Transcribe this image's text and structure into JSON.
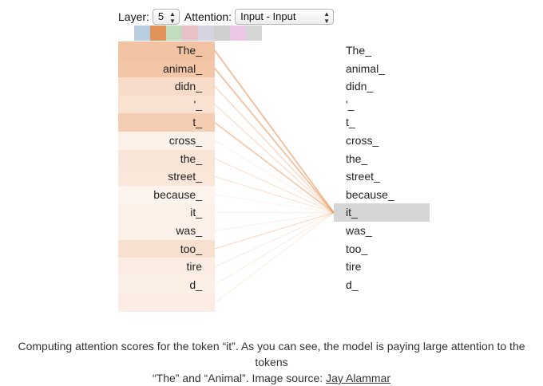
{
  "controls": {
    "layer_label": "Layer:",
    "layer_value": "5",
    "attention_label": "Attention:",
    "attention_value": "Input - Input"
  },
  "head_colors": [
    "#b9cde0",
    "#e0945a",
    "#c3dcc0",
    "#e8c1c6",
    "#d6d3e2",
    "#cfcfcf",
    "#ecc7e3",
    "#d5d5d5"
  ],
  "selected_head": 1,
  "tokens": [
    "The_",
    "animal_",
    "didn_",
    "'_",
    "t_",
    "cross_",
    "the_",
    "street_",
    "because_",
    "it_",
    "was_",
    "too_",
    "tire",
    "d_",
    ""
  ],
  "attention_weights": [
    0.55,
    0.52,
    0.3,
    0.24,
    0.45,
    0.08,
    0.2,
    0.18,
    0.05,
    0.08,
    0.08,
    0.25,
    0.12,
    0.1,
    0.12
  ],
  "selected_token_index": 9,
  "accent_color": "#e8945a",
  "caption": {
    "line1": "Computing attention scores for the token “it”. As you can see, the model is paying large attention to the tokens",
    "line2_prefix": "“The” and “Animal”. Image source: ",
    "link_text": "Jay Alammar"
  }
}
